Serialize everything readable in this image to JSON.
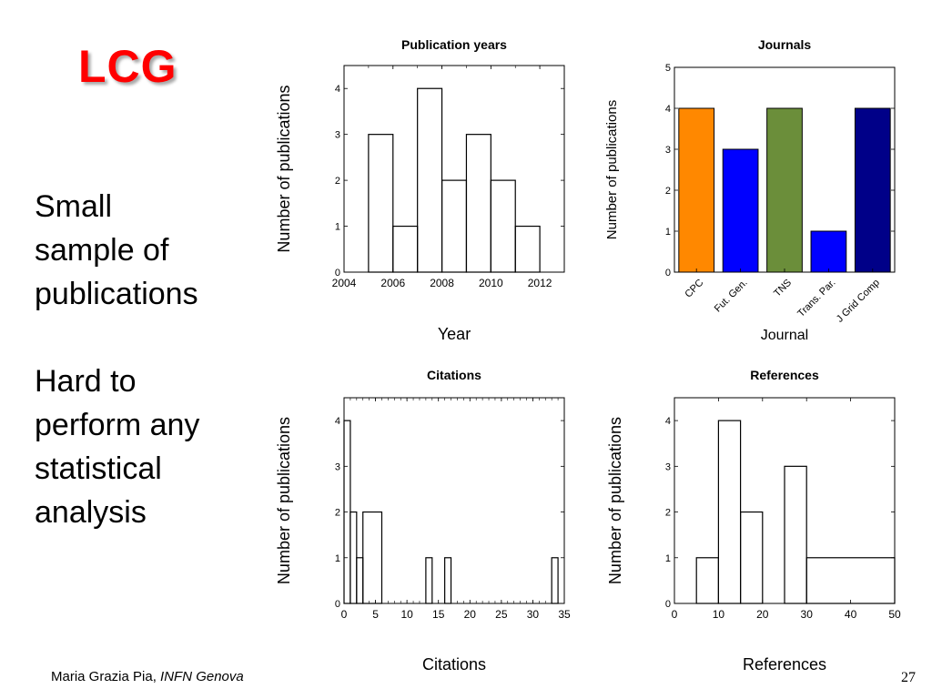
{
  "slide": {
    "title": "LCG",
    "para1": [
      "Small",
      "sample of",
      "publications"
    ],
    "para2": [
      "Hard to",
      "perform any",
      "statistical",
      "analysis"
    ],
    "footer_name": "Maria Grazia Pia, ",
    "footer_org": "INFN Genova",
    "page_number": "27"
  },
  "chart_data": [
    {
      "type": "histogram",
      "title": "Publication years",
      "xlabel": "Year",
      "ylabel": "Number of publications",
      "xlim": [
        2004,
        2013
      ],
      "ylim": [
        0,
        4.5
      ],
      "xticks": [
        2004,
        2006,
        2008,
        2010,
        2012
      ],
      "yticks": [
        0,
        1,
        2,
        3,
        4
      ],
      "bins": [
        {
          "from": 2005,
          "to": 2006,
          "value": 3
        },
        {
          "from": 2006,
          "to": 2007,
          "value": 1
        },
        {
          "from": 2007,
          "to": 2008,
          "value": 4
        },
        {
          "from": 2008,
          "to": 2009,
          "value": 2
        },
        {
          "from": 2009,
          "to": 2010,
          "value": 3
        },
        {
          "from": 2010,
          "to": 2011,
          "value": 2
        },
        {
          "from": 2011,
          "to": 2012,
          "value": 1
        }
      ]
    },
    {
      "type": "bar",
      "title": "Journals",
      "xlabel": "Journal",
      "ylabel": "Number of publications",
      "ylim": [
        0,
        5
      ],
      "yticks": [
        0,
        1,
        2,
        3,
        4,
        5
      ],
      "categories": [
        "CPC",
        "Fut. Gen.",
        "TNS",
        "Trans. Par.",
        "J Grid Comp"
      ],
      "values": [
        4,
        3,
        4,
        1,
        4
      ],
      "colors": [
        "#ff8800",
        "#0000ff",
        "#6b8e3a",
        "#0000ff",
        "#000088"
      ]
    },
    {
      "type": "histogram",
      "title": "Citations",
      "xlabel": "Citations",
      "ylabel": "Number of publications",
      "xlim": [
        0,
        35
      ],
      "ylim": [
        0,
        4.5
      ],
      "xticks": [
        0,
        5,
        10,
        15,
        20,
        25,
        30,
        35
      ],
      "yticks": [
        0,
        1,
        2,
        3,
        4
      ],
      "bins": [
        {
          "from": 0,
          "to": 1,
          "value": 4
        },
        {
          "from": 1,
          "to": 2,
          "value": 2
        },
        {
          "from": 2,
          "to": 3,
          "value": 1
        },
        {
          "from": 3,
          "to": 6,
          "value": 2
        },
        {
          "from": 13,
          "to": 14,
          "value": 1
        },
        {
          "from": 16,
          "to": 17,
          "value": 1
        },
        {
          "from": 33,
          "to": 34,
          "value": 1
        }
      ]
    },
    {
      "type": "histogram",
      "title": "References",
      "xlabel": "References",
      "ylabel": "Number of publications",
      "xlim": [
        0,
        50
      ],
      "ylim": [
        0,
        4.5
      ],
      "xticks": [
        0,
        10,
        20,
        30,
        40,
        50
      ],
      "yticks": [
        0,
        1,
        2,
        3,
        4
      ],
      "bins": [
        {
          "from": 5,
          "to": 10,
          "value": 1
        },
        {
          "from": 10,
          "to": 15,
          "value": 4
        },
        {
          "from": 15,
          "to": 20,
          "value": 2
        },
        {
          "from": 25,
          "to": 30,
          "value": 3
        },
        {
          "from": 30,
          "to": 50,
          "value": 1
        }
      ]
    }
  ]
}
